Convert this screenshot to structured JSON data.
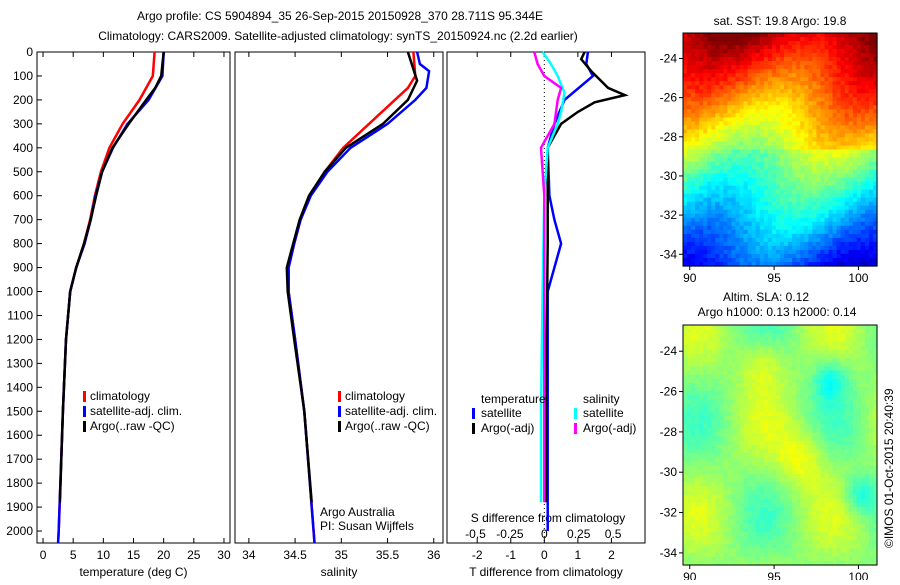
{
  "title_line1": "Argo profile: CS 5904894_35 26-Sep-2015 20150928_370 28.711S 95.344E",
  "title_line2": "Climatology: CARS2009. Satellite-adjusted climatology: synTS_20150924.nc (2.2d earlier)",
  "credit": "©IMOS 01-Oct-2015 20:40:39",
  "colors": {
    "climatology": "#ff0000",
    "satellite": "#0000ff",
    "argo": "#000000",
    "sal_satellite": "#00ffff",
    "sal_argo": "#ff00ff"
  },
  "chart_data": [
    {
      "type": "line",
      "xlabel": "temperature (deg C)",
      "xlim": [
        -1,
        31
      ],
      "xticks": [
        0,
        5,
        10,
        15,
        20,
        25,
        30
      ],
      "ylim": [
        0,
        2050
      ],
      "yticks": [
        0,
        100,
        200,
        300,
        400,
        500,
        600,
        700,
        800,
        900,
        1000,
        1100,
        1200,
        1300,
        1400,
        1500,
        1600,
        1700,
        1800,
        1900,
        2000
      ],
      "legend": [
        "climatology",
        "satellite-adj. clim.",
        "Argo(..raw -QC)"
      ],
      "series": [
        {
          "name": "climatology",
          "color": "#ff0000",
          "depth": [
            0,
            100,
            200,
            300,
            400,
            500,
            600,
            700,
            800,
            900,
            1000,
            1200,
            1500,
            2000,
            2050
          ],
          "values": [
            18.5,
            18.2,
            16,
            13.2,
            11,
            9.6,
            8.6,
            7.8,
            6.8,
            5.5,
            4.5,
            3.8,
            3.3,
            2.6,
            2.5
          ]
        },
        {
          "name": "satellite-adj. clim.",
          "color": "#0000ff",
          "depth": [
            0,
            100,
            200,
            300,
            400,
            500,
            600,
            700,
            800,
            900,
            1000,
            1200,
            1500,
            2000,
            2050
          ],
          "values": [
            20,
            19.8,
            17.5,
            14,
            11.6,
            9.8,
            8.7,
            7.9,
            6.9,
            5.5,
            4.5,
            3.8,
            3.3,
            2.6,
            2.5
          ]
        },
        {
          "name": "Argo(..raw -QC)",
          "color": "#000000",
          "depth": [
            0,
            100,
            150,
            200,
            300,
            400,
            500,
            600,
            700,
            800,
            900,
            1000,
            1200,
            1500,
            1880
          ],
          "values": [
            20,
            19.6,
            18.6,
            17.1,
            14.2,
            11.5,
            9.8,
            8.8,
            7.9,
            6.8,
            5.5,
            4.5,
            3.8,
            3.3,
            2.8
          ]
        }
      ]
    },
    {
      "type": "line",
      "xlabel": "salinity",
      "xlim": [
        33.85,
        36.1
      ],
      "xticks": [
        34,
        34.5,
        35,
        35.5,
        36
      ],
      "ylim": [
        0,
        2050
      ],
      "legend": [
        "climatology",
        "satellite-adj. clim.",
        "Argo(..raw -QC)"
      ],
      "annotation": [
        "Argo Australia",
        "PI: Susan Wijffels"
      ],
      "series": [
        {
          "name": "climatology",
          "color": "#ff0000",
          "depth": [
            0,
            100,
            150,
            200,
            300,
            400,
            500,
            600,
            700,
            800,
            900,
            1000,
            1200,
            1500,
            2000,
            2050
          ],
          "values": [
            35.78,
            35.8,
            35.72,
            35.58,
            35.3,
            35.02,
            34.82,
            34.66,
            34.56,
            34.49,
            34.43,
            34.43,
            34.5,
            34.6,
            34.7,
            34.71
          ]
        },
        {
          "name": "satellite-adj. clim.",
          "color": "#0000ff",
          "depth": [
            0,
            50,
            80,
            150,
            200,
            300,
            400,
            500,
            600,
            700,
            800,
            900,
            1000,
            1200,
            1500,
            2000,
            2050
          ],
          "values": [
            35.82,
            35.85,
            35.95,
            35.92,
            35.8,
            35.5,
            35.1,
            34.85,
            34.67,
            34.56,
            34.49,
            34.43,
            34.43,
            34.5,
            34.6,
            34.7,
            34.71
          ]
        },
        {
          "name": "Argo(..raw -QC)",
          "color": "#000000",
          "depth": [
            0,
            60,
            120,
            200,
            300,
            400,
            500,
            600,
            700,
            800,
            900,
            1000,
            1200,
            1500,
            1880
          ],
          "values": [
            35.72,
            35.77,
            35.82,
            35.72,
            35.45,
            35.05,
            34.82,
            34.65,
            34.55,
            34.48,
            34.41,
            34.42,
            34.49,
            34.6,
            34.68
          ]
        }
      ]
    },
    {
      "type": "line",
      "xlabel": "T difference from climatology",
      "x2label": "S difference from climatology",
      "xlim": [
        -2.9,
        3
      ],
      "xticks": [
        -2,
        -1,
        0,
        1,
        2
      ],
      "x2ticks": [
        -0.5,
        -0.25,
        0,
        0.25,
        0.5
      ],
      "ylim": [
        0,
        2050
      ],
      "legend_titles": [
        "temperature",
        "salinity"
      ],
      "legend": [
        "satellite",
        "Argo(-adj)",
        "satellite",
        "Argo(-adj)"
      ],
      "series": [
        {
          "name": "T satellite",
          "color": "#0000ff",
          "depth": [
            0,
            50,
            100,
            200,
            300,
            400,
            600,
            700,
            800,
            900,
            1000,
            1500,
            2000
          ],
          "values": [
            1.3,
            1.25,
            1.45,
            0.6,
            0.3,
            0.1,
            0.15,
            0.3,
            0.5,
            0.3,
            0.1,
            0.1,
            0.1
          ]
        },
        {
          "name": "T Argo(-adj)",
          "color": "#000000",
          "depth": [
            0,
            30,
            80,
            150,
            180,
            210,
            250,
            300,
            350,
            400,
            800,
            1500,
            1880
          ],
          "values": [
            1.2,
            1.1,
            1.4,
            1.9,
            2.4,
            1.5,
            1.0,
            0.5,
            0.3,
            0.1,
            0.1,
            0.05,
            0.05
          ]
        },
        {
          "name": "S satellite",
          "color": "#00ffff",
          "depth": [
            0,
            50,
            100,
            170,
            250,
            300,
            400,
            600,
            1000,
            1500,
            1880
          ],
          "values": [
            -0.05,
            0.2,
            0.4,
            0.6,
            0.5,
            0.4,
            0.1,
            0,
            -0.05,
            -0.1,
            -0.1
          ]
        },
        {
          "name": "S Argo(-adj)",
          "color": "#ff00ff",
          "depth": [
            0,
            50,
            100,
            150,
            200,
            300,
            400,
            600,
            1000,
            1880
          ],
          "values": [
            -0.3,
            -0.2,
            0,
            0.5,
            0.4,
            0.3,
            -0.1,
            0,
            0,
            0
          ]
        }
      ]
    },
    {
      "type": "heatmap",
      "title": "sat. SST: 19.8 Argo: 19.8",
      "xlim": [
        89.6,
        101.1
      ],
      "ylim": [
        -34.6,
        -22.7
      ],
      "xticks": [
        90,
        95,
        100
      ],
      "yticks": [
        -24,
        -26,
        -28,
        -30,
        -32,
        -34
      ],
      "field": "sst"
    },
    {
      "type": "heatmap",
      "title": "Altim. SLA: 0.12",
      "subtitle": "Argo h1000: 0.13 h2000: 0.14",
      "xlim": [
        89.6,
        101.1
      ],
      "ylim": [
        -34.6,
        -22.7
      ],
      "xticks": [
        90,
        95,
        100
      ],
      "yticks": [
        -24,
        -26,
        -28,
        -30,
        -32,
        -34
      ],
      "field": "sla"
    }
  ]
}
